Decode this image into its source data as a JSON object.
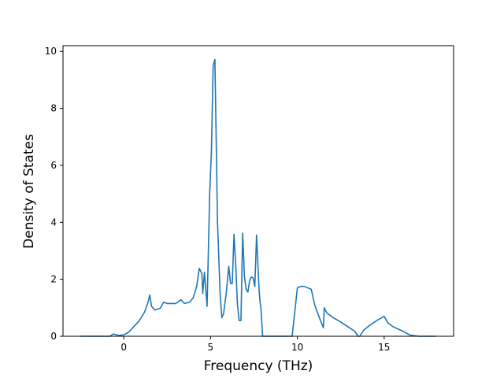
{
  "chart_data": {
    "type": "line",
    "title": "",
    "xlabel": "Frequency (THz)",
    "ylabel": "Density of States",
    "xlim": [
      -3.5,
      19
    ],
    "ylim": [
      0,
      10.2
    ],
    "xticks": [
      0,
      5,
      10,
      15
    ],
    "xtick_labels": [
      "0",
      "5",
      "10",
      "15"
    ],
    "yticks": [
      0,
      2,
      4,
      6,
      8,
      10
    ],
    "ytick_labels": [
      "0",
      "2",
      "4",
      "6",
      "8",
      "10"
    ],
    "grid": false,
    "legend": "none",
    "series": [
      {
        "color": "#1f77b4",
        "x": [
          -2.5,
          -1.5,
          -0.8,
          -0.6,
          -0.3,
          0,
          0.3,
          0.6,
          0.9,
          1.2,
          1.4,
          1.5,
          1.6,
          1.8,
          2.1,
          2.3,
          2.5,
          3.0,
          3.3,
          3.5,
          3.8,
          4.0,
          4.2,
          4.35,
          4.5,
          4.55,
          4.65,
          4.8,
          4.95,
          5.05,
          5.15,
          5.25,
          5.4,
          5.55,
          5.65,
          5.75,
          5.9,
          6.05,
          6.15,
          6.25,
          6.35,
          6.45,
          6.55,
          6.65,
          6.75,
          6.85,
          6.95,
          7.05,
          7.15,
          7.25,
          7.35,
          7.45,
          7.55,
          7.65,
          7.75,
          7.8,
          7.85,
          7.9,
          8.0,
          8.1,
          8.2,
          8.25,
          9.5,
          9.7,
          10.0,
          10.2,
          10.4,
          10.8,
          11.0,
          11.3,
          11.5,
          11.55,
          11.7,
          12.0,
          12.5,
          13.0,
          13.3,
          13.5,
          13.6,
          13.8,
          14.2,
          14.6,
          15.0,
          15.2,
          15.5,
          16.0,
          16.5,
          17.0,
          18.0
        ],
        "y": [
          0.0,
          0.0,
          0.0,
          0.08,
          0.03,
          0.05,
          0.15,
          0.35,
          0.55,
          0.85,
          1.2,
          1.45,
          1.05,
          0.92,
          0.98,
          1.2,
          1.15,
          1.15,
          1.28,
          1.15,
          1.2,
          1.35,
          1.75,
          2.38,
          2.2,
          1.5,
          2.25,
          1.05,
          5.0,
          6.5,
          9.5,
          9.72,
          4.0,
          1.5,
          0.65,
          0.8,
          1.5,
          2.45,
          1.85,
          1.85,
          3.58,
          2.5,
          1.1,
          0.55,
          0.55,
          3.62,
          2.1,
          1.65,
          1.55,
          1.95,
          2.08,
          2.05,
          1.75,
          3.55,
          2.2,
          1.6,
          1.2,
          1.0,
          0.0,
          0.0,
          0.0,
          0.0,
          0.0,
          0.0,
          1.7,
          1.75,
          1.75,
          1.65,
          1.1,
          0.6,
          0.3,
          1.0,
          0.82,
          0.68,
          0.5,
          0.3,
          0.18,
          0.0,
          0.0,
          0.2,
          0.4,
          0.56,
          0.7,
          0.48,
          0.34,
          0.2,
          0.04,
          0.0,
          0.0
        ]
      }
    ]
  }
}
